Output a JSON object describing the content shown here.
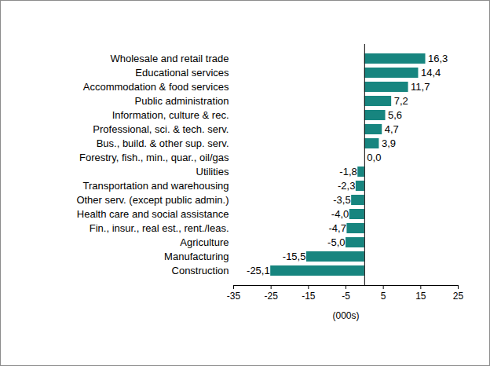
{
  "chart_data": {
    "type": "bar",
    "orientation": "horizontal",
    "categories": [
      "Wholesale and retail trade",
      "Educational services",
      "Accommodation & food services",
      "Public administration",
      "Information, culture & rec.",
      "Professional, sci. & tech. serv.",
      "Bus., build. & other sup. serv.",
      "Forestry, fish., min., quar., oil/gas",
      "Utilities",
      "Transportation and warehousing",
      "Other serv. (except public admin.)",
      "Health care and social assistance",
      "Fin., insur., real est., rent./leas.",
      "Agriculture",
      "Manufacturing",
      "Construction"
    ],
    "values": [
      16.3,
      14.4,
      11.7,
      7.2,
      5.6,
      4.7,
      3.9,
      0.0,
      -1.8,
      -2.3,
      -3.5,
      -4.0,
      -4.7,
      -5.0,
      -15.5,
      -25.1
    ],
    "value_labels": [
      "16,3",
      "14,4",
      "11,7",
      "7,2",
      "5,6",
      "4,7",
      "3,9",
      "0,0",
      "-1,8",
      "-2,3",
      "-3,5",
      "-4,0",
      "-4,7",
      "-5,0",
      "-15,5",
      "-25,1"
    ],
    "color": "#17857f",
    "xlabel": "(000s)",
    "xlim": [
      -35,
      25
    ],
    "xticks": [
      -35,
      -25,
      -15,
      -5,
      5,
      15,
      25
    ],
    "grid": false,
    "data_labels": true
  }
}
